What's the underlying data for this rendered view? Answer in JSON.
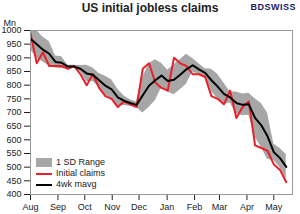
{
  "chart_data": {
    "type": "line",
    "title": "US initial jobless claims",
    "ylabel": "Mn",
    "source_logo": "BDSWISS",
    "x": [
      0,
      1,
      2,
      3,
      4,
      5,
      6,
      7,
      8,
      9,
      10,
      11,
      12,
      13,
      14,
      15,
      16,
      17,
      18,
      19,
      20,
      21,
      22,
      23,
      24,
      25,
      26,
      27,
      28,
      29,
      30,
      31,
      32,
      33,
      34,
      35,
      36,
      37,
      38,
      39,
      40,
      41
    ],
    "series": [
      {
        "name": "1 SD Range",
        "type": "area",
        "color": "#a6a6a6",
        "low": [
          930,
          900,
          885,
          870,
          863,
          860,
          863,
          863,
          848,
          813,
          813,
          793,
          763,
          750,
          725,
          726,
          723,
          718,
          698,
          718,
          743,
          790,
          775,
          765,
          783,
          803,
          848,
          838,
          830,
          778,
          750,
          728,
          735,
          695,
          688,
          690,
          610,
          573,
          528,
          525,
          498,
          456
        ],
        "high": [
          1010,
          1000,
          975,
          960,
          907,
          904,
          873,
          873,
          872,
          873,
          863,
          843,
          833,
          820,
          785,
          760,
          747,
          738,
          828,
          878,
          893,
          880,
          855,
          875,
          893,
          913,
          898,
          878,
          860,
          858,
          840,
          808,
          775,
          775,
          768,
          770,
          750,
          733,
          698,
          585,
          568,
          546
        ]
      },
      {
        "name": "Initial claims",
        "type": "line",
        "color": "#e8202a",
        "values": [
          990,
          880,
          920,
          870,
          870,
          870,
          860,
          870,
          840,
          800,
          840,
          790,
          760,
          750,
          720,
          740,
          730,
          720,
          860,
          880,
          810,
          790,
          780,
          900,
          880,
          870,
          840,
          840,
          830,
          760,
          750,
          730,
          780,
          680,
          720,
          740,
          580,
          570,
          560,
          510,
          490,
          445
        ]
      },
      {
        "name": "4wk mavg",
        "type": "line",
        "color": "#000000",
        "values": [
          970,
          950,
          930,
          915,
          885,
          882,
          868,
          868,
          860,
          843,
          838,
          818,
          798,
          785,
          755,
          743,
          735,
          728,
          763,
          798,
          818,
          835,
          815,
          820,
          838,
          858,
          873,
          858,
          845,
          818,
          795,
          768,
          755,
          735,
          728,
          730,
          680,
          653,
          613,
          555,
          533,
          501
        ]
      }
    ],
    "xlim": [
      0,
      42
    ],
    "xticks": [
      {
        "value": 0,
        "label": "Aug"
      },
      {
        "value": 4.4,
        "label": "Sep"
      },
      {
        "value": 8.7,
        "label": "Oct"
      },
      {
        "value": 13.1,
        "label": "Nov"
      },
      {
        "value": 17.4,
        "label": "Dec"
      },
      {
        "value": 21.9,
        "label": "Jan"
      },
      {
        "value": 26.3,
        "label": "Feb"
      },
      {
        "value": 30.3,
        "label": "Mar"
      },
      {
        "value": 34.7,
        "label": "Apr"
      },
      {
        "value": 39,
        "label": "May"
      }
    ],
    "ylim": [
      400,
      1000
    ],
    "yticks": [
      400,
      450,
      500,
      550,
      600,
      650,
      700,
      750,
      800,
      850,
      900,
      950,
      1000
    ],
    "grid": false,
    "legend": "bottom-left"
  }
}
